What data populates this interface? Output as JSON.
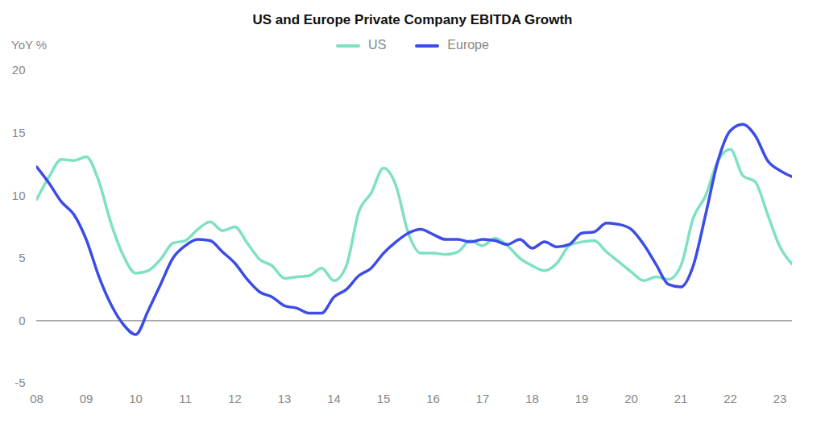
{
  "chart_data": {
    "type": "line",
    "title": "US and Europe Private Company EBITDA Growth",
    "ylabel": "YoY %",
    "x": [
      2008,
      2008.25,
      2008.5,
      2008.75,
      2009,
      2009.25,
      2009.5,
      2009.75,
      2010,
      2010.25,
      2010.5,
      2010.75,
      2011,
      2011.25,
      2011.5,
      2011.75,
      2012,
      2012.25,
      2012.5,
      2012.75,
      2013,
      2013.25,
      2013.5,
      2013.75,
      2014,
      2014.25,
      2014.5,
      2014.75,
      2015,
      2015.25,
      2015.5,
      2015.75,
      2016,
      2016.25,
      2016.5,
      2016.75,
      2017,
      2017.25,
      2017.5,
      2017.75,
      2018,
      2018.25,
      2018.5,
      2018.75,
      2019,
      2019.25,
      2019.5,
      2019.75,
      2020,
      2020.25,
      2020.5,
      2020.75,
      2021,
      2021.25,
      2021.5,
      2021.75,
      2022,
      2022.25,
      2022.5,
      2022.75,
      2023,
      2023.25
    ],
    "series": [
      {
        "name": "US",
        "color": "#7fe0c4",
        "values": [
          9.7,
          11.5,
          12.9,
          12.8,
          13.1,
          11.2,
          7.8,
          5.2,
          3.8,
          4.0,
          4.9,
          6.2,
          6.4,
          7.3,
          7.9,
          7.2,
          7.5,
          6.2,
          4.9,
          4.4,
          3.4,
          3.5,
          3.6,
          4.2,
          3.2,
          4.4,
          8.7,
          10.2,
          12.2,
          10.8,
          7.0,
          5.4,
          5.4,
          5.3,
          5.5,
          6.4,
          6.0,
          6.6,
          6.0,
          5.0,
          4.4,
          4.0,
          4.6,
          6.0,
          6.3,
          6.4,
          5.5,
          4.7,
          3.9,
          3.2,
          3.5,
          3.3,
          4.4,
          8.2,
          10.0,
          12.8,
          13.7,
          11.6,
          11.1,
          8.5,
          5.9,
          4.5
        ]
      },
      {
        "name": "Europe",
        "color": "#3c4ce6",
        "values": [
          12.3,
          11.0,
          9.5,
          8.5,
          6.5,
          3.6,
          1.3,
          -0.3,
          -1.1,
          0.8,
          2.9,
          5.0,
          6.0,
          6.5,
          6.4,
          5.5,
          4.6,
          3.3,
          2.3,
          1.9,
          1.2,
          1.0,
          0.6,
          0.6,
          1.9,
          2.5,
          3.6,
          4.2,
          5.4,
          6.3,
          7.0,
          7.3,
          6.9,
          6.5,
          6.5,
          6.3,
          6.5,
          6.4,
          6.1,
          6.5,
          5.8,
          6.3,
          5.9,
          6.1,
          7.0,
          7.1,
          7.8,
          7.7,
          7.3,
          6.1,
          4.5,
          2.9,
          2.7,
          4.4,
          8.5,
          12.8,
          15.2,
          15.7,
          14.8,
          12.8,
          12.0,
          11.5
        ]
      }
    ],
    "xlim": [
      2008,
      2023.25
    ],
    "xticks": [
      {
        "value": 2008,
        "label": "08"
      },
      {
        "value": 2009,
        "label": "09"
      },
      {
        "value": 2010,
        "label": "10"
      },
      {
        "value": 2011,
        "label": "11"
      },
      {
        "value": 2012,
        "label": "12"
      },
      {
        "value": 2013,
        "label": "13"
      },
      {
        "value": 2014,
        "label": "14"
      },
      {
        "value": 2015,
        "label": "15"
      },
      {
        "value": 2016,
        "label": "16"
      },
      {
        "value": 2017,
        "label": "17"
      },
      {
        "value": 2018,
        "label": "18"
      },
      {
        "value": 2019,
        "label": "19"
      },
      {
        "value": 2020,
        "label": "20"
      },
      {
        "value": 2021,
        "label": "21"
      },
      {
        "value": 2022,
        "label": "22"
      },
      {
        "value": 2023,
        "label": "23"
      }
    ],
    "ylim": [
      -5,
      20
    ],
    "yticks": [
      -5,
      0,
      5,
      10,
      15,
      20
    ],
    "grid": false,
    "legend": "top"
  }
}
